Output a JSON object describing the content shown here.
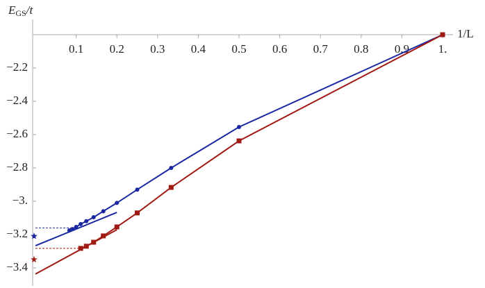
{
  "chart_data": {
    "type": "line",
    "ylabel": {
      "main": "E",
      "sub": "GS",
      "rest": "/t"
    },
    "xlabel": "1/L",
    "xlim": [
      0,
      1
    ],
    "ylim": [
      -2.0,
      -3.45
    ],
    "xticks": [
      0.1,
      0.2,
      0.3,
      0.4,
      0.5,
      0.6,
      0.7,
      0.8,
      0.9,
      {
        "value": 1,
        "label": "1."
      }
    ],
    "yticks": [
      {
        "value": -2.2,
        "label": "−2.2"
      },
      {
        "value": -2.4,
        "label": "−2.4"
      },
      {
        "value": -2.6,
        "label": "−2.6"
      },
      {
        "value": -2.8,
        "label": "−2.8"
      },
      {
        "value": -3.0,
        "label": "−3."
      },
      {
        "value": -3.2,
        "label": "−3.2"
      },
      {
        "value": -3.4,
        "label": "−3.4"
      }
    ],
    "series": [
      {
        "color": "#1a27a0",
        "marker": "circle",
        "x": [
          1,
          0.5,
          0.3333,
          0.25,
          0.2,
          0.1667,
          0.1429,
          0.125,
          0.1111,
          0.1,
          0.0909,
          0.0833
        ],
        "values": [
          -2.0,
          -2.554,
          -2.8,
          -2.93,
          -3.01,
          -3.06,
          -3.096,
          -3.12,
          -3.137,
          -3.154,
          -3.167,
          -3.175
        ],
        "fit_x": [
          0,
          0.2
        ],
        "fit_values": [
          -3.267,
          -3.067
        ],
        "level": -3.16,
        "level_x": [
          0,
          0.09
        ],
        "star": -3.21
      },
      {
        "color": "#a01a14",
        "marker": "square",
        "x": [
          1,
          0.5,
          0.3333,
          0.25,
          0.2,
          0.1667,
          0.1429,
          0.125,
          0.1111
        ],
        "values": [
          -2.0,
          -2.6375,
          -2.917,
          -3.07,
          -3.154,
          -3.208,
          -3.246,
          -3.27,
          -3.283
        ],
        "fit_x": [
          0,
          0.2
        ],
        "fit_values": [
          -3.437,
          -3.171
        ],
        "level": -3.283,
        "level_x": [
          0,
          0.11
        ],
        "star": -3.35
      }
    ]
  }
}
